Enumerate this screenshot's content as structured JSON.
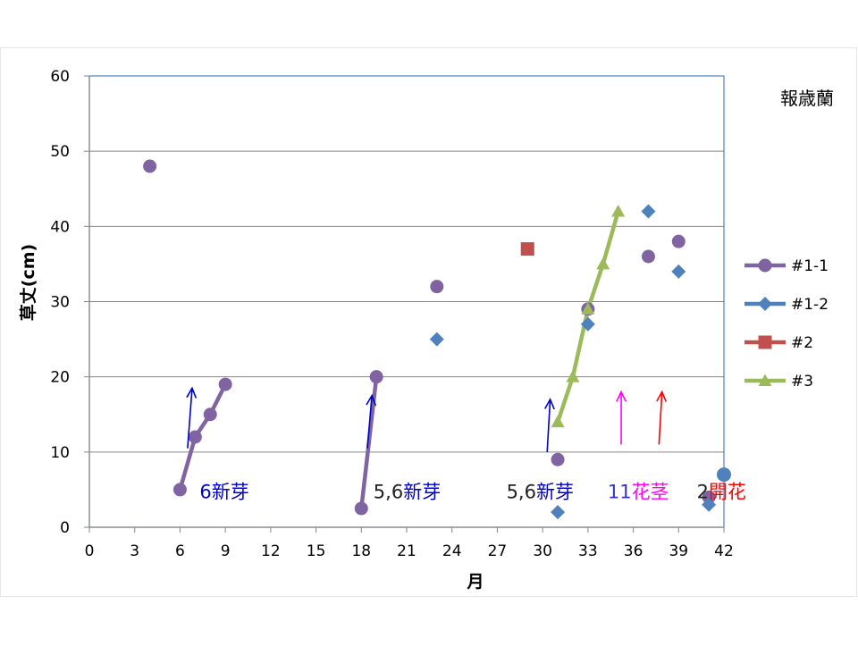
{
  "chart_data": {
    "type": "scatter",
    "title": "",
    "corner_label": "報歳蘭",
    "xlabel": "月",
    "ylabel": "草丈(cm)",
    "xlim": [
      0,
      42
    ],
    "ylim": [
      0,
      60
    ],
    "xticks": [
      0,
      3,
      6,
      9,
      12,
      15,
      18,
      21,
      24,
      27,
      30,
      33,
      36,
      39,
      42
    ],
    "yticks": [
      0,
      10,
      20,
      30,
      40,
      50,
      60
    ],
    "grid": "horizontal",
    "legend_position": "right",
    "series": [
      {
        "name": "#1-1",
        "marker": "circle",
        "color": "#8064A2",
        "points": [
          [
            4,
            48
          ],
          [
            6,
            5
          ],
          [
            7,
            12
          ],
          [
            8,
            15
          ],
          [
            9,
            19
          ],
          [
            18,
            2.5
          ],
          [
            19,
            20
          ],
          [
            23,
            32
          ],
          [
            31,
            9
          ],
          [
            33,
            29
          ],
          [
            37,
            36
          ],
          [
            39,
            38
          ],
          [
            41,
            4
          ]
        ],
        "segments": [
          [
            [
              6,
              5
            ],
            [
              7,
              12
            ],
            [
              8,
              15
            ],
            [
              9,
              19
            ]
          ],
          [
            [
              18,
              2.5
            ],
            [
              19,
              20
            ]
          ]
        ]
      },
      {
        "name": "#1-2",
        "marker": "diamond",
        "color": "#4F81BD",
        "points": [
          [
            23,
            25
          ],
          [
            31,
            2
          ],
          [
            33,
            27
          ],
          [
            37,
            42
          ],
          [
            39,
            34
          ],
          [
            41,
            3
          ],
          [
            42,
            7
          ]
        ],
        "segments": []
      },
      {
        "name": "#2",
        "marker": "square",
        "color": "#C0504D",
        "points": [
          [
            29,
            37
          ]
        ],
        "segments": []
      },
      {
        "name": "#3",
        "marker": "triangle",
        "color": "#9BBB59",
        "points": [
          [
            31,
            14
          ],
          [
            32,
            20
          ],
          [
            33,
            29
          ],
          [
            34,
            35
          ],
          [
            35,
            42
          ]
        ],
        "segments": [
          [
            [
              31,
              14
            ],
            [
              32,
              20
            ],
            [
              33,
              29
            ],
            [
              34,
              35
            ],
            [
              35,
              42
            ]
          ]
        ]
      }
    ],
    "extra_points": [
      {
        "x": 42,
        "y": 7,
        "marker": "circle",
        "color": "#4F81BD"
      }
    ],
    "arrows": [
      {
        "x0": 6.5,
        "y0": 10.5,
        "x1": 6.8,
        "y1": 18.5,
        "color": "#0000CC"
      },
      {
        "x0": 18.4,
        "y0": 10.5,
        "x1": 18.7,
        "y1": 17.5,
        "color": "#0000CC"
      },
      {
        "x0": 30.3,
        "y0": 10.0,
        "x1": 30.5,
        "y1": 17.0,
        "color": "#0000CC"
      },
      {
        "x0": 35.2,
        "y0": 11.0,
        "x1": 35.2,
        "y1": 18.0,
        "color": "#FF00FF"
      },
      {
        "x0": 37.7,
        "y0": 11.0,
        "x1": 37.9,
        "y1": 18.0,
        "color": "#FF0000"
      }
    ],
    "annotations": [
      {
        "x": 7.3,
        "y": 4.8,
        "parts": [
          {
            "text": "6",
            "color": "#0000CC"
          },
          {
            "text": "新芽",
            "color": "#0000CC"
          }
        ]
      },
      {
        "x": 18.8,
        "y": 4.8,
        "parts": [
          {
            "text": "5,6",
            "color": "#222222"
          },
          {
            "text": "新芽",
            "color": "#0000CC"
          }
        ]
      },
      {
        "x": 27.6,
        "y": 4.8,
        "parts": [
          {
            "text": "5,6",
            "color": "#222222"
          },
          {
            "text": "新芽",
            "color": "#0000CC"
          }
        ]
      },
      {
        "x": 34.3,
        "y": 4.8,
        "parts": [
          {
            "text": "11",
            "color": "#3333CC"
          },
          {
            "text": "花茎",
            "color": "#FF00FF"
          }
        ]
      },
      {
        "x": 40.2,
        "y": 4.8,
        "parts": [
          {
            "text": "2",
            "color": "#222222"
          },
          {
            "text": "開花",
            "color": "#FF0000"
          }
        ]
      }
    ]
  }
}
